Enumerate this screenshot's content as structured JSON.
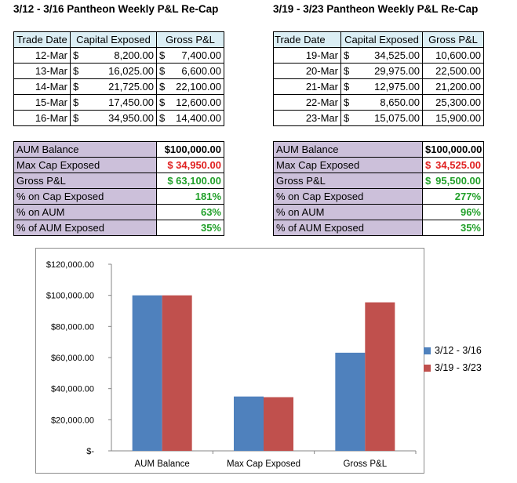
{
  "weeks": [
    {
      "title": "3/12 - 3/16 Pantheon Weekly P&L Re-Cap",
      "headers": [
        "Trade Date",
        "Capital Exposed",
        "Gross P&L"
      ],
      "rows": [
        {
          "date": "12-Mar",
          "capital": "8,200.00",
          "pnl": "7,400.00"
        },
        {
          "date": "13-Mar",
          "capital": "16,025.00",
          "pnl": "6,600.00"
        },
        {
          "date": "14-Mar",
          "capital": "21,725.00",
          "pnl": "22,100.00"
        },
        {
          "date": "15-Mar",
          "capital": "17,450.00",
          "pnl": "12,600.00"
        },
        {
          "date": "16-Mar",
          "capital": "34,950.00",
          "pnl": "14,400.00"
        }
      ],
      "currency": "$",
      "summary": {
        "aum_label": "AUM Balance",
        "aum_value": "$100,000.00",
        "maxcap_label": "Max Cap Exposed",
        "maxcap_value": "$ 34,950.00",
        "gross_label": "Gross P&L",
        "gross_value": "$ 63,100.00",
        "pct_cap_label": "% on Cap Exposed",
        "pct_cap_value": "181%",
        "pct_aum_label": "% on AUM",
        "pct_aum_value": "63%",
        "pct_exposed_label": "% of AUM Exposed",
        "pct_exposed_value": "35%"
      }
    },
    {
      "title": "3/19 - 3/23 Pantheon Weekly P&L Re-Cap",
      "headers": [
        "Trade Date",
        "Capital Exposed",
        "Gross P&L"
      ],
      "rows": [
        {
          "date": "19-Mar",
          "capital": "34,525.00",
          "pnl": "10,600.00"
        },
        {
          "date": "20-Mar",
          "capital": "29,975.00",
          "pnl": "22,500.00"
        },
        {
          "date": "21-Mar",
          "capital": "12,975.00",
          "pnl": "21,200.00"
        },
        {
          "date": "22-Mar",
          "capital": "8,650.00",
          "pnl": "25,300.00"
        },
        {
          "date": "23-Mar",
          "capital": "15,075.00",
          "pnl": "15,900.00"
        }
      ],
      "currency": "$",
      "summary": {
        "aum_label": "AUM Balance",
        "aum_cur": "$",
        "aum_value": "100,000.00",
        "maxcap_label": "Max Cap Exposed",
        "maxcap_cur": "$",
        "maxcap_value": "34,525.00",
        "gross_label": "Gross P&L",
        "gross_cur": "$",
        "gross_value": "95,500.00",
        "pct_cap_label": "% on Cap Exposed",
        "pct_cap_value": "277%",
        "pct_aum_label": "% on AUM",
        "pct_aum_value": "96%",
        "pct_exposed_label": "% of AUM Exposed",
        "pct_exposed_value": "35%"
      }
    }
  ],
  "chart_data": {
    "type": "bar",
    "categories": [
      "AUM Balance",
      "Max Cap Exposed",
      "Gross P&L"
    ],
    "series": [
      {
        "name": "3/12 - 3/16",
        "values": [
          100000,
          34950,
          63100
        ],
        "color": "#4f81bd"
      },
      {
        "name": "3/19 - 3/23",
        "values": [
          100000,
          34525,
          95500
        ],
        "color": "#c0504d"
      }
    ],
    "yticks": [
      "$-",
      "$20,000.00",
      "$40,000.00",
      "$60,000.00",
      "$80,000.00",
      "$100,000.00",
      "$120,000.00"
    ],
    "ylim": [
      0,
      120000
    ],
    "legend_position": "right",
    "grid": false,
    "title": "",
    "xlabel": "",
    "ylabel": ""
  },
  "colors": {
    "header_fill": "#dbeef4",
    "summary_fill": "#ccc0da",
    "negative": "#e02020",
    "positive": "#22a02a"
  }
}
